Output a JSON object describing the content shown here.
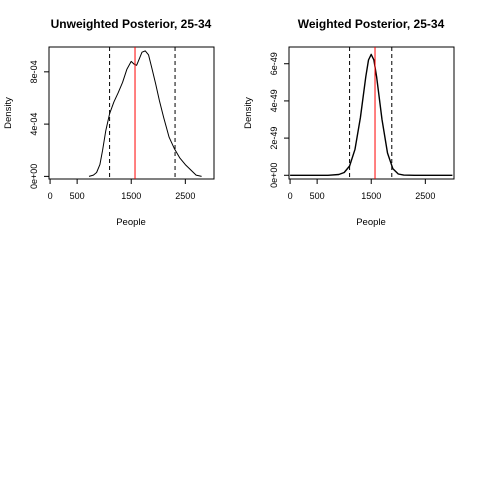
{
  "chart_data": [
    {
      "type": "line",
      "title": "Unweighted Posterior, 25-34",
      "xlabel": "People",
      "ylabel": "Density",
      "xlim": [
        -20,
        3030
      ],
      "ylim": [
        -2e-05,
        0.00099
      ],
      "x_ticks": [
        0,
        500,
        1500,
        2500
      ],
      "x_tick_labels": [
        "0",
        "500",
        "1500",
        "2500"
      ],
      "y_ticks": [
        0,
        0.0004,
        0.0008
      ],
      "y_tick_labels": [
        "0e+00",
        "4e-04",
        "8e-04"
      ],
      "series": [
        {
          "x": [
            720,
            800,
            860,
            920,
            970,
            1030,
            1100,
            1180,
            1260,
            1340,
            1420,
            1500,
            1550,
            1600,
            1640,
            1700,
            1760,
            1820,
            1880,
            1950,
            2020,
            2100,
            2200,
            2300,
            2400,
            2500,
            2600,
            2700,
            2800
          ],
          "y": [
            0,
            1e-05,
            3e-05,
            9e-05,
            0.0002,
            0.00035,
            0.00048,
            0.00057,
            0.00064,
            0.00072,
            0.00082,
            0.00088,
            0.00086,
            0.00085,
            0.00089,
            0.00095,
            0.00096,
            0.00093,
            0.00083,
            0.00071,
            0.00058,
            0.00045,
            0.0003,
            0.00021,
            0.00014,
            9e-05,
            5e-05,
            1e-05,
            0
          ]
        }
      ],
      "vlines": [
        {
          "x": 1100,
          "style": "dashed",
          "color": "#000000"
        },
        {
          "x": 1570,
          "style": "solid",
          "color": "#ff0000"
        },
        {
          "x": 2310,
          "style": "dashed",
          "color": "#000000"
        }
      ]
    },
    {
      "type": "line",
      "title": "Weighted Posterior, 25-34",
      "xlabel": "People",
      "ylabel": "Density",
      "xlim": [
        -20,
        3030
      ],
      "ylim": [
        -2e-50,
        6.9e-49
      ],
      "x_ticks": [
        0,
        500,
        1500,
        2500
      ],
      "x_tick_labels": [
        "0",
        "500",
        "1500",
        "2500"
      ],
      "y_ticks": [
        0,
        2e-49,
        4e-49,
        6e-49
      ],
      "y_tick_labels": [
        "0e+00",
        "2e-49",
        "4e-49",
        "6e-49"
      ],
      "series": [
        {
          "x": [
            0,
            700,
            900,
            1000,
            1100,
            1200,
            1300,
            1400,
            1450,
            1500,
            1550,
            1600,
            1700,
            1800,
            1900,
            2000,
            2100,
            2300,
            3000
          ],
          "y": [
            0,
            0,
            4e-51,
            1.5e-50,
            5e-50,
            1.4e-49,
            3.1e-49,
            5.3e-49,
            6.2e-49,
            6.5e-49,
            6.2e-49,
            5.3e-49,
            3e-49,
            1.2e-49,
            3.5e-50,
            7e-51,
            1e-51,
            0,
            0
          ]
        }
      ],
      "vlines": [
        {
          "x": 1100,
          "style": "dashed",
          "color": "#000000"
        },
        {
          "x": 1570,
          "style": "solid",
          "color": "#ff0000"
        },
        {
          "x": 1880,
          "style": "dashed",
          "color": "#000000"
        }
      ]
    }
  ]
}
